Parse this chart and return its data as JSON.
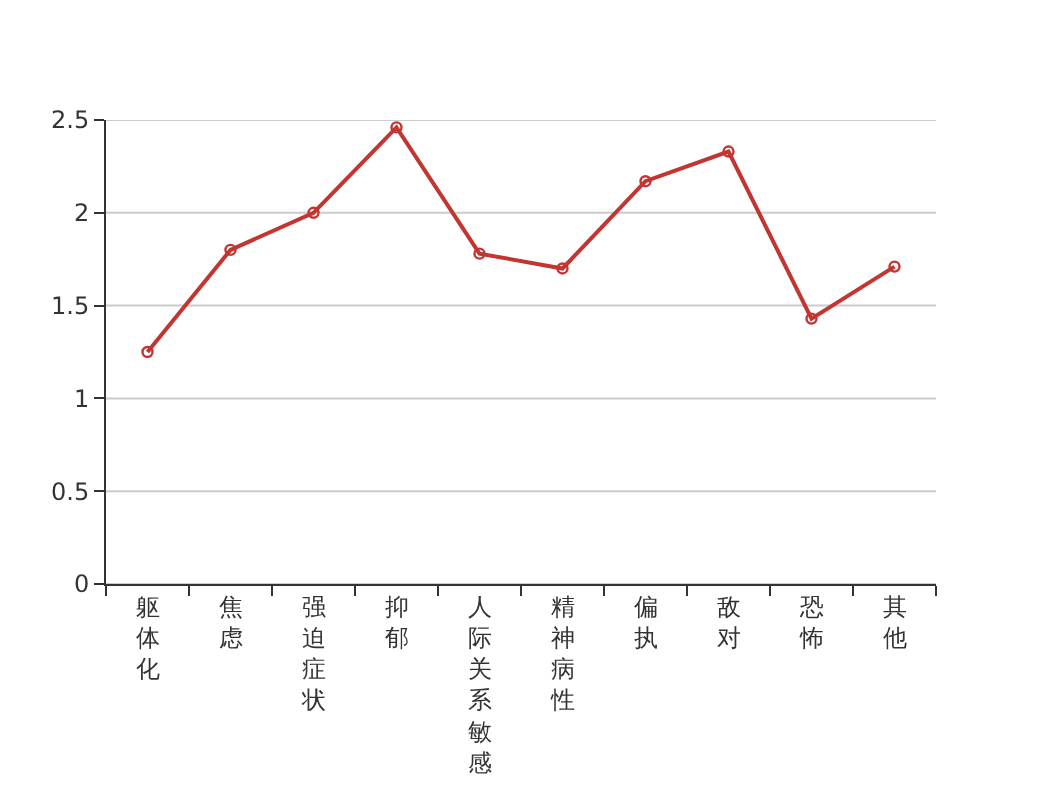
{
  "chart_data": {
    "type": "line",
    "categories": [
      "躯体化",
      "焦虑",
      "强迫症状",
      "抑郁",
      "人际关系敏感",
      "精神病性",
      "偏执",
      "敌对",
      "恐怖",
      "其他"
    ],
    "series": [
      {
        "color": "#c23531",
        "values": [
          1.25,
          1.8,
          2.0,
          2.46,
          1.78,
          1.7,
          2.17,
          2.33,
          1.43,
          1.71
        ]
      }
    ],
    "ylim": [
      0,
      2.5
    ],
    "yticks": [
      0,
      0.5,
      1,
      1.5,
      2,
      2.5
    ],
    "grid": "y",
    "marker": "circle",
    "line_style": "solid"
  }
}
